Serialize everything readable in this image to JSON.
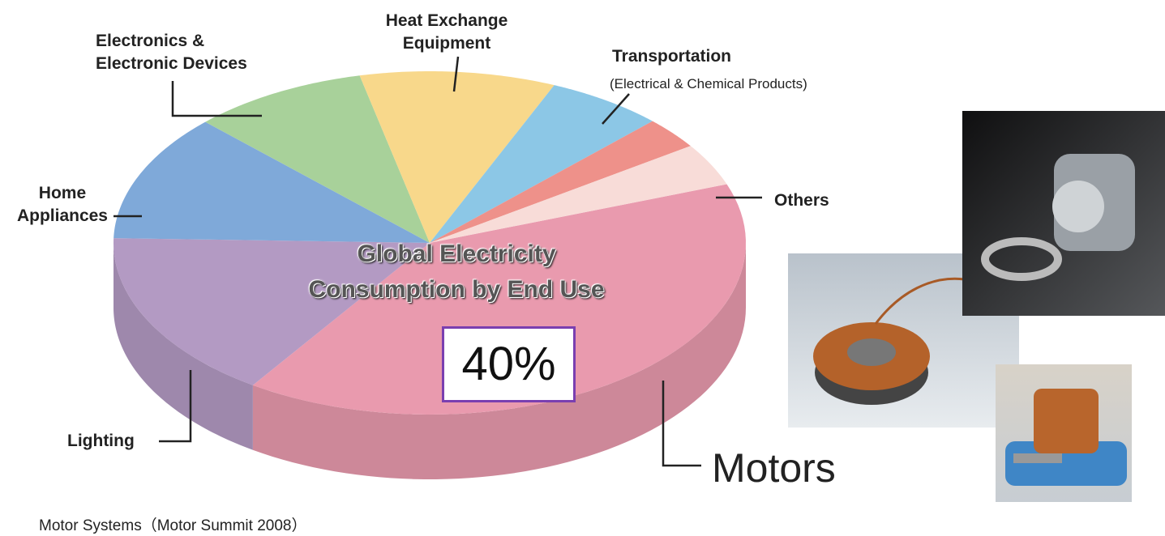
{
  "chart_data": {
    "type": "pie",
    "title": "Global Electricity\nConsumption by End Use",
    "caption": "Motor Systems（Motor Summit 2008）",
    "annotation": "(Electrical & Chemical Products)",
    "categories": [
      "Motors",
      "Lighting",
      "Home\nAppliances",
      "Electronics &\nElectronic Devices",
      "Heat Exchange\nEquipment",
      "Transportation",
      null,
      "Others"
    ],
    "values": [
      40,
      16,
      12,
      9,
      10,
      6,
      3,
      4
    ],
    "value_labels": [
      "40%",
      null,
      null,
      null,
      null,
      null,
      null,
      null
    ],
    "colors": [
      "#e99aae",
      "#b39ac3",
      "#7fa9d9",
      "#a8d19a",
      "#f8d88b",
      "#8cc7e6",
      "#ee918a",
      "#f8dcd8"
    ]
  }
}
